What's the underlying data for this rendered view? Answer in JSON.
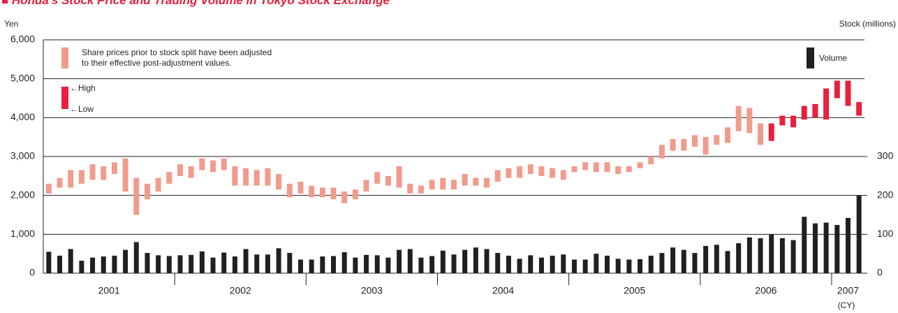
{
  "chart_data": {
    "type": "range-bar-volume",
    "title": "■ Honda's Stock Price and Trading Volume in Tokyo Stock Exchange",
    "y_label": "Yen",
    "y2_label": "Stock (millions)",
    "x_label": "(CY)",
    "high_label": "←High",
    "low_label": "←Low",
    "categories": [
      "2001",
      "2001",
      "2001",
      "2001",
      "2001",
      "2001",
      "2001",
      "2001",
      "2001",
      "2001",
      "2001",
      "2001",
      "2002",
      "2002",
      "2002",
      "2002",
      "2002",
      "2002",
      "2002",
      "2002",
      "2002",
      "2002",
      "2002",
      "2002",
      "2003",
      "2003",
      "2003",
      "2003",
      "2003",
      "2003",
      "2003",
      "2003",
      "2003",
      "2003",
      "2003",
      "2003",
      "2004",
      "2004",
      "2004",
      "2004",
      "2004",
      "2004",
      "2004",
      "2004",
      "2004",
      "2004",
      "2004",
      "2004",
      "2005",
      "2005",
      "2005",
      "2005",
      "2005",
      "2005",
      "2005",
      "2005",
      "2005",
      "2005",
      "2005",
      "2005",
      "2006",
      "2006",
      "2006",
      "2006",
      "2006",
      "2006",
      "2006",
      "2006",
      "2006",
      "2006",
      "2006",
      "2006",
      "2007",
      "2007",
      "2007"
    ],
    "series": [
      {
        "name": "Share prices prior to stock split have been adjusted\nto their effective post-adjustment values.",
        "color": "#f19b8c",
        "high": [
          2300,
          2450,
          2650,
          2650,
          2800,
          2750,
          2850,
          2950,
          2450,
          2300,
          2450,
          2600,
          2800,
          2750,
          2950,
          2900,
          2950,
          2750,
          2700,
          2650,
          2700,
          2550,
          2300,
          2350,
          2250,
          2200,
          2200,
          2100,
          2150,
          2400,
          2600,
          2500,
          2750,
          2300,
          2250,
          2400,
          2450,
          2400,
          2550,
          2450,
          2450,
          2650,
          2700,
          2750,
          2800,
          2750,
          2700,
          2650,
          2750,
          2850,
          2850,
          2850,
          2750,
          2750,
          2850,
          3000,
          3300,
          3450,
          3450,
          3550,
          3500,
          3550,
          3750,
          4300,
          4250,
          3850,
          null,
          null,
          null,
          null,
          null,
          null,
          null,
          null,
          null
        ],
        "low": [
          2050,
          2200,
          2200,
          2300,
          2400,
          2400,
          2550,
          2100,
          1500,
          1900,
          2100,
          2300,
          2500,
          2450,
          2650,
          2600,
          2650,
          2250,
          2250,
          2250,
          2250,
          2150,
          1950,
          2050,
          1950,
          1950,
          1900,
          1800,
          1900,
          2100,
          2300,
          2250,
          2200,
          2050,
          2050,
          2150,
          2150,
          2150,
          2250,
          2250,
          2200,
          2350,
          2450,
          2450,
          2550,
          2500,
          2450,
          2400,
          2600,
          2650,
          2600,
          2600,
          2550,
          2600,
          2700,
          2800,
          2950,
          3150,
          3150,
          3250,
          3050,
          3300,
          3350,
          3650,
          3600,
          3300,
          null,
          null,
          null,
          null,
          null,
          null,
          null,
          null,
          null
        ]
      },
      {
        "color": "#e8203c",
        "high": [
          null,
          null,
          null,
          null,
          null,
          null,
          null,
          null,
          null,
          null,
          null,
          null,
          null,
          null,
          null,
          null,
          null,
          null,
          null,
          null,
          null,
          null,
          null,
          null,
          null,
          null,
          null,
          null,
          null,
          null,
          null,
          null,
          null,
          null,
          null,
          null,
          null,
          null,
          null,
          null,
          null,
          null,
          null,
          null,
          null,
          null,
          null,
          null,
          null,
          null,
          null,
          null,
          null,
          null,
          null,
          null,
          null,
          null,
          null,
          null,
          null,
          null,
          null,
          null,
          null,
          null,
          3850,
          4050,
          4050,
          4300,
          4350,
          4750,
          4950,
          4950,
          4400
        ],
        "low": [
          null,
          null,
          null,
          null,
          null,
          null,
          null,
          null,
          null,
          null,
          null,
          null,
          null,
          null,
          null,
          null,
          null,
          null,
          null,
          null,
          null,
          null,
          null,
          null,
          null,
          null,
          null,
          null,
          null,
          null,
          null,
          null,
          null,
          null,
          null,
          null,
          null,
          null,
          null,
          null,
          null,
          null,
          null,
          null,
          null,
          null,
          null,
          null,
          null,
          null,
          null,
          null,
          null,
          null,
          null,
          null,
          null,
          null,
          null,
          null,
          null,
          null,
          null,
          null,
          null,
          null,
          3400,
          3800,
          3750,
          3950,
          4000,
          3950,
          4500,
          4300,
          4050
        ]
      },
      {
        "name": "Volume",
        "color": "#231f20",
        "axis": "y2",
        "values": [
          55,
          45,
          62,
          32,
          40,
          43,
          45,
          60,
          80,
          52,
          46,
          44,
          46,
          47,
          56,
          40,
          53,
          43,
          62,
          48,
          48,
          64,
          52,
          35,
          35,
          43,
          44,
          54,
          40,
          47,
          46,
          40,
          60,
          62,
          40,
          44,
          58,
          48,
          60,
          66,
          62,
          52,
          45,
          37,
          46,
          40,
          45,
          48,
          35,
          35,
          50,
          45,
          37,
          35,
          36,
          45,
          52,
          66,
          60,
          52,
          70,
          73,
          57,
          77,
          92,
          90,
          100,
          90,
          85,
          145,
          128,
          130,
          124,
          142,
          200
        ]
      }
    ],
    "ylim": [
      0,
      6000
    ],
    "yticks": [
      0,
      {
        "value": 1000,
        "label": "1,000"
      },
      {
        "value": 2000,
        "label": "2,000"
      },
      {
        "value": 3000,
        "label": "3,000"
      },
      {
        "value": 4000,
        "label": "4,000"
      },
      {
        "value": 5000,
        "label": "5,000"
      },
      {
        "value": 6000,
        "label": "6,000"
      }
    ],
    "y2lim": [
      0,
      600
    ],
    "y2ticks": [
      0,
      100,
      200,
      300
    ],
    "grid": true
  }
}
